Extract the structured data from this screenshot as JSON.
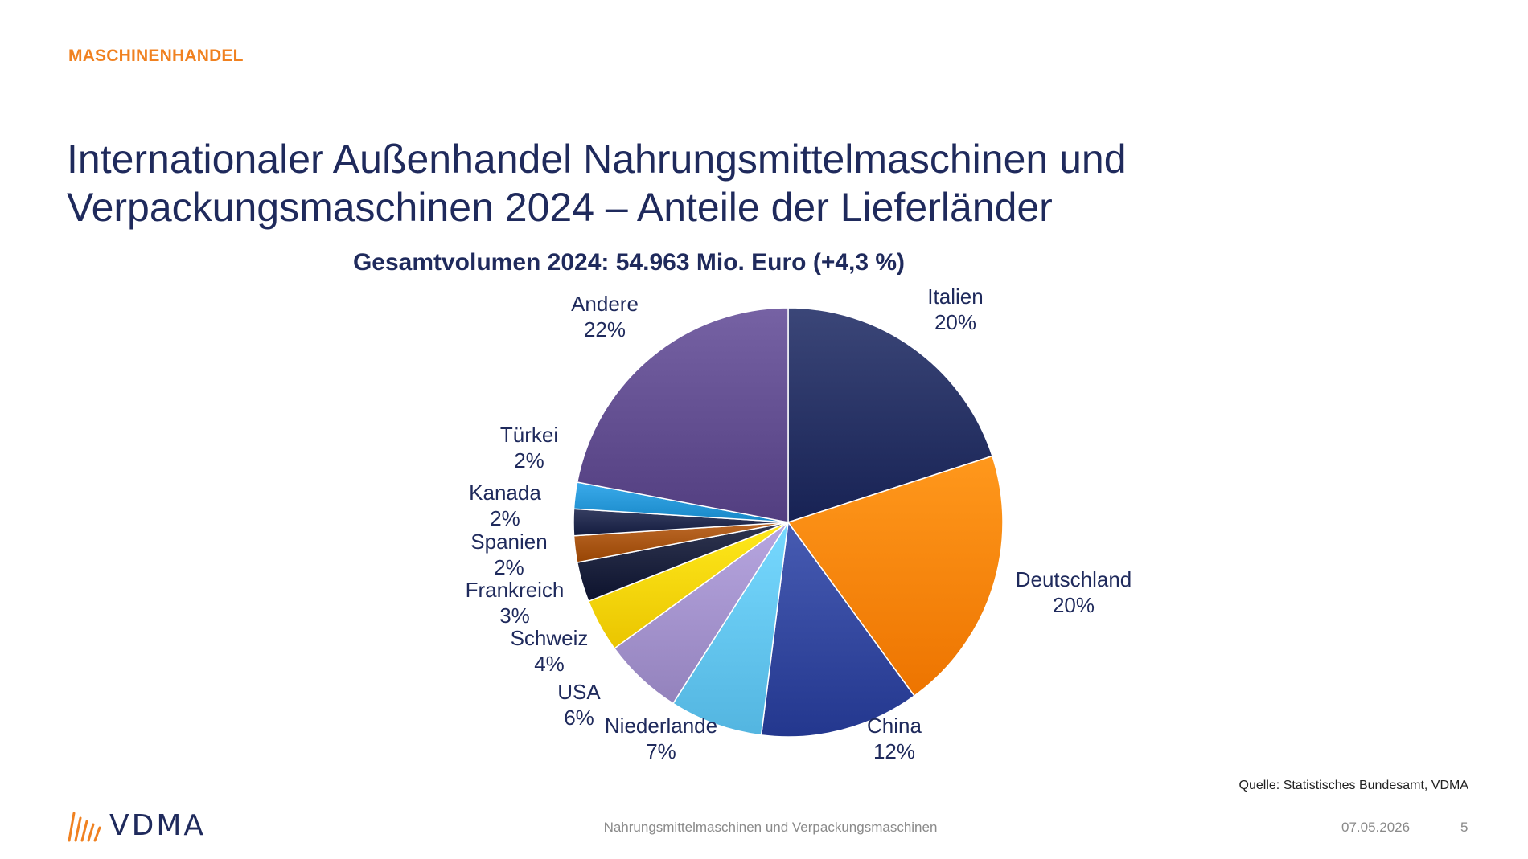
{
  "header": {
    "section_label": "MASCHINENHANDEL",
    "title_line1": "Internationaler Außenhandel Nahrungsmittelmaschinen und",
    "title_line2": "Verpackungsmaschinen 2024 – Anteile der Lieferländer"
  },
  "chart_data": {
    "type": "pie",
    "title": "Gesamtvolumen 2024: 54.963 Mio. Euro (+4,3 %)",
    "slices": [
      {
        "label": "Italien",
        "value": 20,
        "value_label": "20%",
        "color": "#1f2a5c"
      },
      {
        "label": "Deutschland",
        "value": 20,
        "value_label": "20%",
        "color": "#f57c00"
      },
      {
        "label": "China",
        "value": 12,
        "value_label": "12%",
        "color": "#2b3f96"
      },
      {
        "label": "Niederlande",
        "value": 7,
        "value_label": "7%",
        "color": "#5bbde8"
      },
      {
        "label": "USA",
        "value": 6,
        "value_label": "6%",
        "color": "#9b8ac4"
      },
      {
        "label": "Schweiz",
        "value": 4,
        "value_label": "4%",
        "color": "#f2cd00"
      },
      {
        "label": "Frankreich",
        "value": 3,
        "value_label": "3%",
        "color": "#141a35"
      },
      {
        "label": "Spanien",
        "value": 2,
        "value_label": "2%",
        "color": "#a04d0c"
      },
      {
        "label": "Kanada",
        "value": 2,
        "value_label": "2%",
        "color": "#1b2346"
      },
      {
        "label": "Türkei",
        "value": 2,
        "value_label": "2%",
        "color": "#1f8fcf"
      },
      {
        "label": "Andere",
        "value": 22,
        "value_label": "22%",
        "color": "#5a4688"
      }
    ]
  },
  "footer": {
    "source": "Quelle: Statistisches Bundesamt, VDMA",
    "topic": "Nahrungsmittelmaschinen und Verpackungsmaschinen",
    "date": "07.05.2026",
    "page": "5",
    "logo_text": "VDMA"
  },
  "colors": {
    "accent_orange": "#f08120",
    "brand_navy": "#1f2a5c"
  }
}
